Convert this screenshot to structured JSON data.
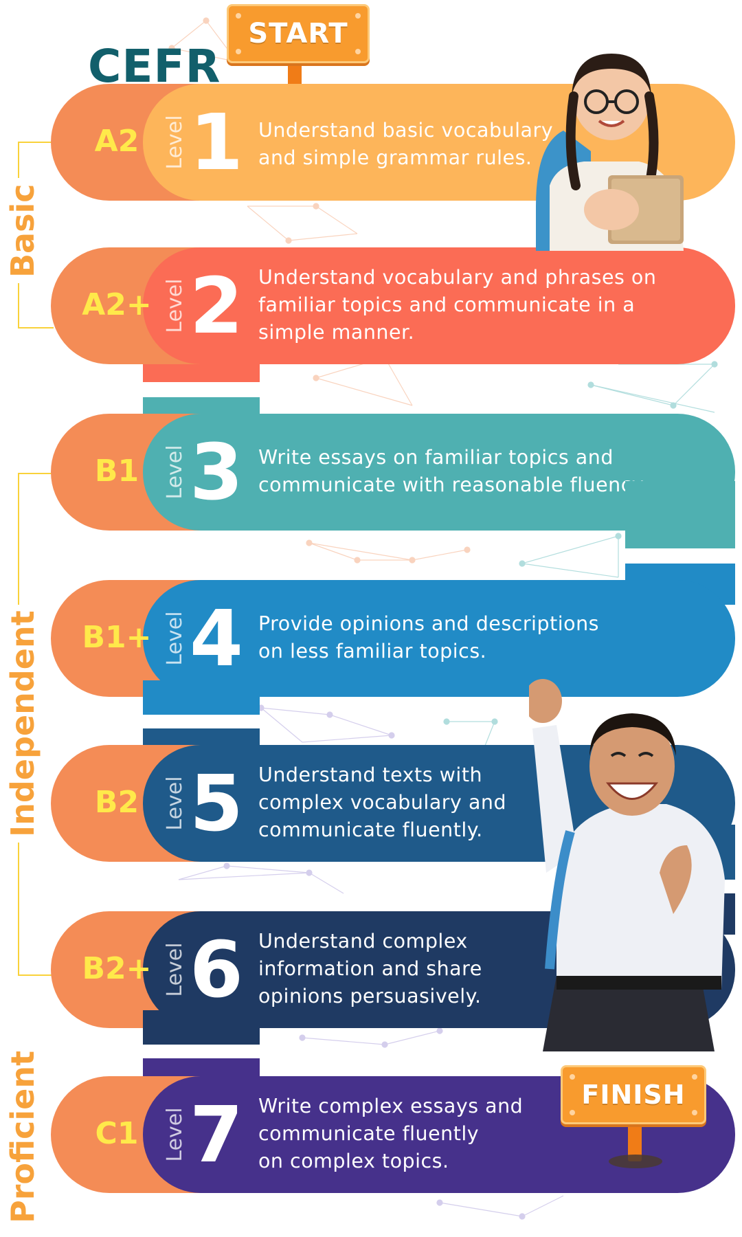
{
  "header": {
    "title": "CEFR",
    "start_label": "START",
    "finish_label": "FINISH"
  },
  "groups": [
    {
      "label": "Basic"
    },
    {
      "label": "Independent"
    },
    {
      "label": "Proficient"
    }
  ],
  "level_word": "Level",
  "levels": [
    {
      "code": "A2",
      "number": "1",
      "color": "#fdb55a",
      "lines": [
        "Understand basic vocabulary",
        "and simple grammar rules."
      ]
    },
    {
      "code": "A2+",
      "number": "2",
      "color": "#fb6c55",
      "lines": [
        "Understand vocabulary and phrases on",
        "familiar topics and communicate in a",
        "simple manner."
      ]
    },
    {
      "code": "B1",
      "number": "3",
      "color": "#4fb0b1",
      "lines": [
        "Write essays on familiar topics and",
        "communicate with reasonable fluency."
      ]
    },
    {
      "code": "B1+",
      "number": "4",
      "color": "#218bc6",
      "lines": [
        "Provide opinions and descriptions",
        "on less familiar topics."
      ]
    },
    {
      "code": "B2",
      "number": "5",
      "color": "#1f5a8a",
      "lines": [
        "Understand texts with",
        "complex vocabulary and",
        "communicate fluently."
      ]
    },
    {
      "code": "B2+",
      "number": "6",
      "color": "#1f3a63",
      "lines": [
        "Understand complex",
        "information and share",
        "opinions persuasively."
      ]
    },
    {
      "code": "C1",
      "number": "7",
      "color": "#46318b",
      "lines": [
        "Write complex essays and",
        "communicate fluently",
        "on complex topics."
      ]
    }
  ]
}
